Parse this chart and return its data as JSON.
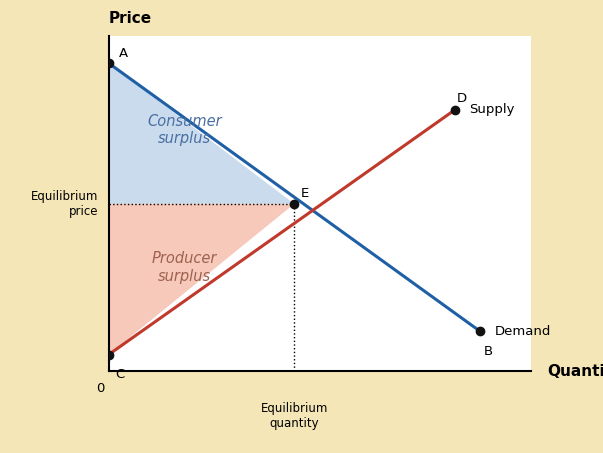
{
  "background_color": "#f5e6b8",
  "plot_bg_color": "#ffffff",
  "figsize": [
    6.03,
    4.53
  ],
  "dpi": 100,
  "xlim": [
    0,
    10
  ],
  "ylim": [
    0,
    10
  ],
  "A": [
    0.0,
    9.2
  ],
  "B": [
    8.8,
    1.2
  ],
  "C": [
    0.0,
    0.5
  ],
  "D": [
    8.2,
    7.8
  ],
  "E": [
    4.4,
    5.0
  ],
  "eq_price_y": 5.0,
  "eq_qty_x": 4.4,
  "demand_color": "#1f5fa6",
  "supply_color": "#c0392b",
  "consumer_surplus_color": "#b8cfe8",
  "consumer_surplus_alpha": 0.75,
  "producer_surplus_color": "#f5c0b0",
  "producer_surplus_alpha": 0.85,
  "point_color": "#111111",
  "point_size": 6,
  "label_fontsize": 9.5,
  "axis_label_fontsize": 11,
  "surplus_fontsize": 10.5,
  "price_label": "Price",
  "quantity_label": "Quantity",
  "equilibrium_price_label": "Equilibrium\nprice",
  "equilibrium_quantity_label": "Equilibrium\nquantity",
  "consumer_surplus_label": "Consumer\nsurplus",
  "producer_surplus_label": "Producer\nsurplus",
  "supply_label": "Supply",
  "demand_label": "Demand",
  "origin_label": "0"
}
